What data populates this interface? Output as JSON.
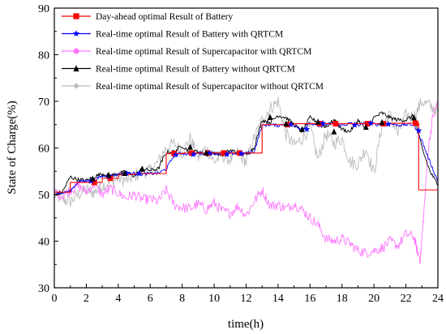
{
  "chart_data": {
    "type": "line",
    "xlabel": "time(h)",
    "ylabel": "State of Charge(%)",
    "xlim": [
      0,
      24
    ],
    "ylim": [
      30,
      90
    ],
    "xticks": [
      0,
      2,
      4,
      6,
      8,
      10,
      12,
      14,
      16,
      18,
      20,
      22,
      24
    ],
    "yticks": [
      30,
      40,
      50,
      60,
      70,
      80,
      90
    ],
    "grid": false,
    "legend_position": "top-left",
    "series": [
      {
        "name": "Day-ahead optimal Result of Battery",
        "color": "#ff0000",
        "marker": "square",
        "x": [
          0,
          1,
          1,
          2,
          2,
          3,
          3,
          4,
          4,
          5,
          5,
          6,
          6,
          7,
          7,
          8,
          8,
          9,
          9,
          10,
          10,
          11,
          11,
          12,
          12,
          13,
          13,
          14,
          14,
          15,
          15,
          16,
          16,
          17,
          17,
          18,
          18,
          19,
          19,
          20,
          20,
          21,
          21,
          22,
          22,
          22.8,
          22.8,
          24
        ],
        "values": [
          50.5,
          50.5,
          52.6,
          52.6,
          52.6,
          52.6,
          53.5,
          53.5,
          54.3,
          54.3,
          54.5,
          54.5,
          54.5,
          54.5,
          58.8,
          58.8,
          58.9,
          58.9,
          58.9,
          58.9,
          58.9,
          58.9,
          58.9,
          58.9,
          58.9,
          58.9,
          65.0,
          65.0,
          65.0,
          65.0,
          65.2,
          65.2,
          65.2,
          65.2,
          65.2,
          65.2,
          65.2,
          65.2,
          65.2,
          65.2,
          65.2,
          65.2,
          65.3,
          65.3,
          65.3,
          65.3,
          51.0,
          51.0
        ],
        "marker_x": [
          2.5,
          3.5,
          7.5,
          8.6,
          9.6,
          10.6,
          11.6,
          14.6,
          16.6,
          17.6,
          19.6,
          20.6,
          22.6
        ],
        "marker_y": [
          52.6,
          53.5,
          58.8,
          58.9,
          58.9,
          58.9,
          58.9,
          65.0,
          65.2,
          65.2,
          65.2,
          65.2,
          65.3
        ]
      },
      {
        "name": "Real-time optimal Result of Battery with QRTCM",
        "color": "#0000ff",
        "marker": "star",
        "x": [
          0,
          0.5,
          1,
          1.5,
          2,
          2.5,
          3,
          3.5,
          4,
          4.5,
          5,
          5.5,
          6,
          6.5,
          7,
          7.5,
          8,
          8.5,
          9,
          9.5,
          10,
          10.5,
          11,
          11.5,
          12,
          12.5,
          13,
          13.5,
          14,
          14.5,
          15,
          15.5,
          16,
          16.5,
          17,
          17.5,
          18,
          18.5,
          19,
          19.5,
          20,
          20.5,
          21,
          21.5,
          22,
          22.5,
          23,
          23.5,
          24
        ],
        "values": [
          50.3,
          50.3,
          50.8,
          52.8,
          52.9,
          53.2,
          53.9,
          54.0,
          54.3,
          54.6,
          54.5,
          54.4,
          54.5,
          54.6,
          55.5,
          58.5,
          58.9,
          58.6,
          58.9,
          58.8,
          58.9,
          58.6,
          58.9,
          58.7,
          58.9,
          59.2,
          64.8,
          65.0,
          64.8,
          65.3,
          65.0,
          63.9,
          65.3,
          64.6,
          65.0,
          65.3,
          64.8,
          65.3,
          64.9,
          65.3,
          65.1,
          65.0,
          65.2,
          64.9,
          65.0,
          65.0,
          61.5,
          57.0,
          52.8
        ],
        "marker_x": [
          2.3,
          3.4,
          4.5,
          5.3,
          7.6,
          8.7,
          9.7,
          10.8,
          11.7,
          14.8,
          15.8,
          16.8,
          18.8,
          19.8,
          20.9,
          22.8
        ],
        "marker_y": [
          52.9,
          53.9,
          54.6,
          54.5,
          58.5,
          58.6,
          58.9,
          58.6,
          58.8,
          65.0,
          64.0,
          65.3,
          64.9,
          65.3,
          65.1,
          63.7
        ]
      },
      {
        "name": "Real-time optimal Result of Supercapacitor with QRTCM",
        "color": "#ff77ff",
        "marker": "circle",
        "x": [
          0,
          0.5,
          1,
          1.5,
          2,
          2.5,
          3,
          3.5,
          4,
          4.5,
          5,
          5.5,
          6,
          6.5,
          7,
          7.5,
          8,
          8.5,
          9,
          9.5,
          10,
          10.5,
          11,
          11.5,
          12,
          12.5,
          13,
          13.5,
          14,
          14.5,
          15,
          15.5,
          16,
          16.5,
          17,
          17.5,
          18,
          18.5,
          19,
          19.5,
          20,
          20.5,
          21,
          21.5,
          22,
          22.5,
          22.7,
          22.9,
          23.1,
          23.4,
          23.7,
          24
        ],
        "values": [
          50.5,
          49.8,
          51.0,
          51.8,
          50.6,
          52.2,
          50.0,
          51.3,
          50.3,
          49.3,
          50.0,
          49.0,
          49.0,
          48.5,
          51.0,
          47.8,
          47.2,
          47.0,
          48.0,
          46.8,
          48.2,
          46.5,
          46.0,
          47.5,
          45.6,
          48.5,
          51.0,
          47.6,
          47.8,
          47.0,
          48.0,
          46.8,
          45.0,
          43.5,
          40.5,
          40.0,
          40.5,
          39.5,
          38.0,
          37.5,
          38.0,
          38.5,
          40.0,
          39.0,
          41.5,
          41.0,
          38.0,
          36.0,
          45.0,
          60.0,
          67.0,
          69.8
        ]
      },
      {
        "name": "Real-time optimal Result of Battery without QRTCM",
        "color": "#000000",
        "marker": "triangle",
        "x": [
          0,
          0.5,
          1,
          1.5,
          2,
          2.5,
          3,
          3.5,
          4,
          4.5,
          5,
          5.5,
          6,
          6.5,
          7,
          7.5,
          8,
          8.5,
          9,
          9.5,
          10,
          10.5,
          11,
          11.5,
          12,
          12.5,
          13,
          13.5,
          14,
          14.5,
          15,
          15.5,
          16,
          16.5,
          17,
          17.5,
          18,
          18.5,
          19,
          19.5,
          20,
          20.5,
          21,
          21.5,
          22,
          22.5,
          23,
          23.5,
          24
        ],
        "values": [
          50.0,
          50.5,
          53.8,
          53.2,
          53.0,
          53.8,
          54.5,
          54.0,
          54.6,
          54.8,
          54.0,
          55.5,
          55.2,
          55.5,
          59.0,
          59.2,
          60.5,
          59.0,
          59.3,
          58.5,
          59.0,
          58.5,
          59.5,
          59.0,
          58.5,
          60.0,
          66.0,
          65.5,
          67.0,
          66.5,
          65.0,
          63.5,
          66.5,
          65.5,
          64.5,
          66.0,
          64.0,
          63.5,
          66.0,
          64.0,
          66.5,
          67.5,
          66.5,
          66.0,
          66.0,
          67.0,
          60.0,
          55.0,
          52.0
        ],
        "marker_x": [
          2.4,
          3.4,
          4.4,
          5.5,
          8.5,
          9.5,
          13.5,
          14.5,
          15.5,
          16.5,
          17.5,
          19.5,
          20.5,
          22.5
        ],
        "marker_y": [
          53.4,
          54.2,
          54.6,
          55.5,
          60.2,
          59.0,
          66.6,
          65.2,
          64.0,
          65.6,
          63.5,
          64.5,
          65.5,
          66.5
        ]
      },
      {
        "name": "Real-time optimal Result of Supercapacitor without QRTCM",
        "color": "#bbbbbb",
        "marker": "diamond",
        "x": [
          0,
          0.5,
          1,
          1.5,
          2,
          2.5,
          3,
          3.5,
          4,
          4.5,
          5,
          5.5,
          6,
          6.5,
          7,
          7.5,
          8,
          8.5,
          9,
          9.5,
          10,
          10.5,
          11,
          11.5,
          12,
          12.5,
          13,
          13.5,
          14,
          14.5,
          15,
          15.5,
          16,
          16.5,
          17,
          17.5,
          18,
          18.5,
          19,
          19.5,
          20,
          20.5,
          21,
          21.5,
          22,
          22.5,
          23,
          23.5,
          24
        ],
        "values": [
          50.0,
          49.0,
          48.5,
          50.0,
          51.0,
          50.5,
          52.0,
          52.5,
          53.5,
          53.0,
          54.0,
          55.0,
          55.0,
          57.0,
          60.0,
          61.0,
          59.0,
          62.0,
          58.0,
          60.0,
          57.0,
          58.5,
          57.5,
          59.0,
          57.0,
          62.0,
          66.0,
          68.5,
          70.0,
          63.0,
          60.5,
          62.0,
          64.5,
          57.5,
          63.0,
          61.0,
          62.0,
          57.0,
          56.5,
          60.0,
          54.5,
          65.0,
          67.0,
          63.0,
          67.0,
          66.5,
          70.0,
          69.0,
          68.0
        ]
      }
    ]
  }
}
